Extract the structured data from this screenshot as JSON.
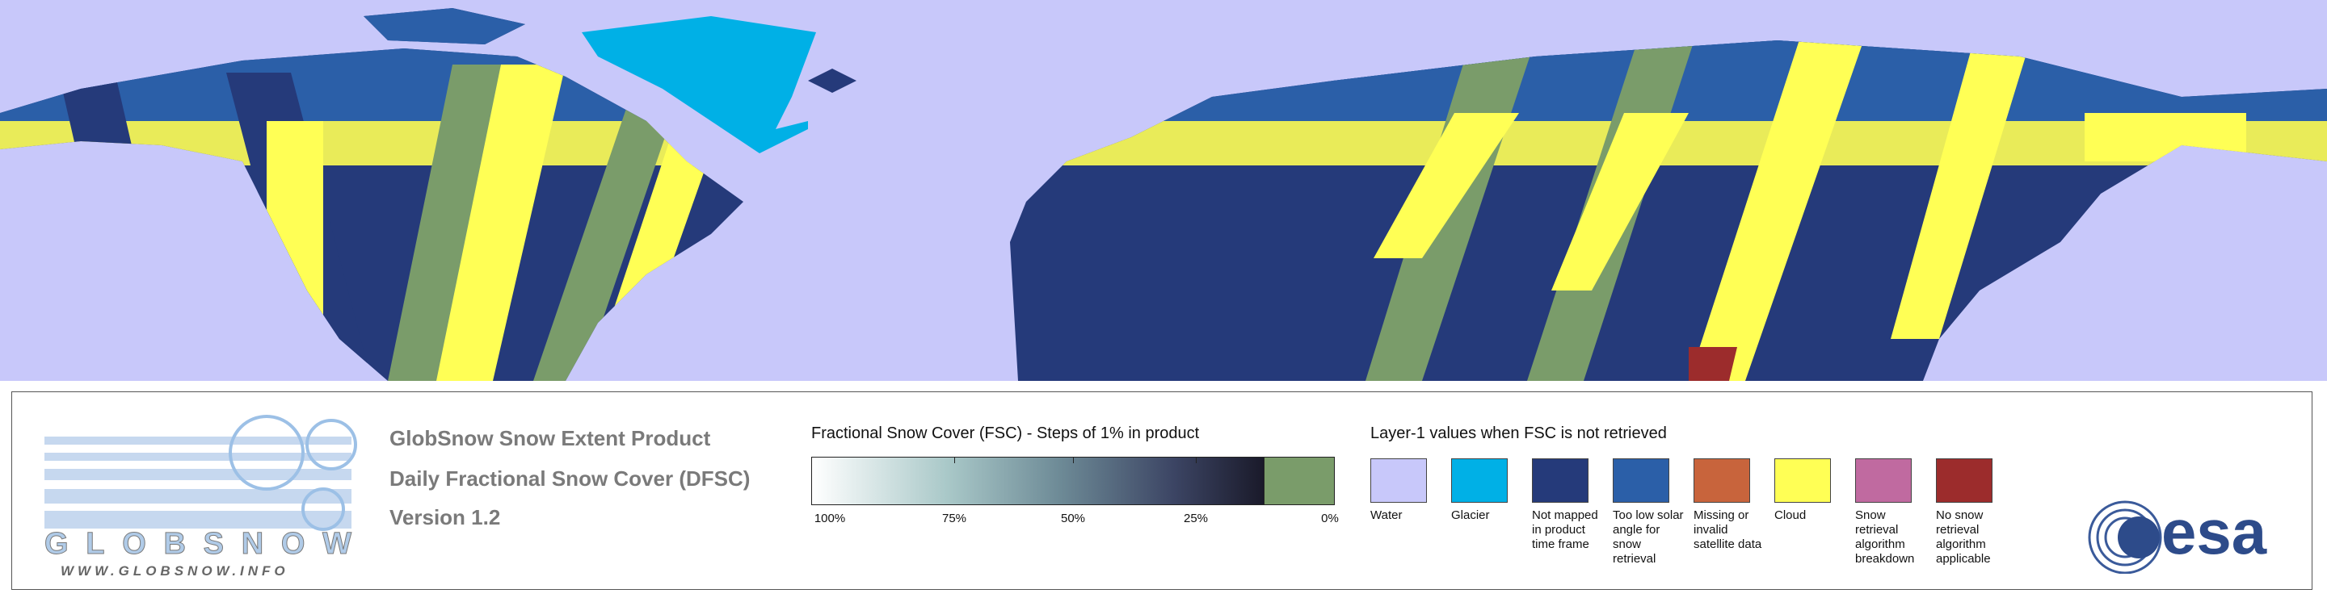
{
  "product": {
    "lines": [
      "GlobSnow Snow Extent Product",
      "Daily Fractional Snow Cover (DFSC)",
      "Version 1.2"
    ]
  },
  "logo": {
    "name": "GLOBSNOW",
    "url": "WWW.GLOBSNOW.INFO",
    "agency": "esa"
  },
  "fsc_scale": {
    "title": "Fractional Snow Cover (FSC) - Steps of 1% in product",
    "ticks": [
      "100%",
      "75%",
      "50%",
      "25%",
      "0%"
    ]
  },
  "layer1": {
    "title": "Layer-1 values when FSC is not retrieved",
    "items": [
      {
        "label": "Water",
        "color": "#c8c8fa"
      },
      {
        "label": "Glacier",
        "color": "#00b0e6"
      },
      {
        "label": "Not mapped in product time frame",
        "color": "#253a7a"
      },
      {
        "label": "Too low solar angle for snow retrieval",
        "color": "#2b5fa8"
      },
      {
        "label": "Missing or invalid satellite data",
        "color": "#c8643c"
      },
      {
        "label": "Cloud",
        "color": "#ffff55"
      },
      {
        "label": "Snow retrieval algorithm breakdown",
        "color": "#c06aa0"
      },
      {
        "label": "No snow retrieval algorithm applicable",
        "color": "#9c2c2c"
      }
    ]
  }
}
